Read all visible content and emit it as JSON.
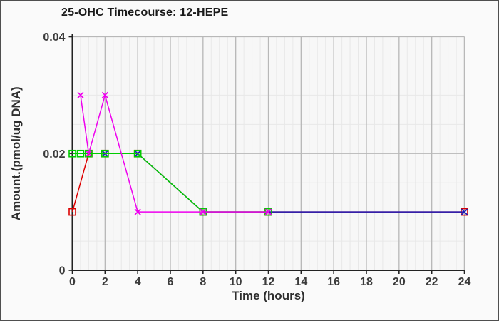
{
  "window": {
    "background": "#fafafa",
    "border_color": "#4f4f4f",
    "plot_background": "#f7f7f7"
  },
  "chart_data": {
    "type": "line",
    "title": "25-OHC Timecourse: 12-HEPE",
    "xlabel": "Time (hours)",
    "ylabel": "Amount.(pmol/ug DNA)",
    "xlim": [
      0,
      24
    ],
    "ylim": [
      0,
      0.04
    ],
    "grid": true,
    "legend_position": "none",
    "x_major_ticks": [
      0,
      2,
      4,
      6,
      8,
      10,
      12,
      14,
      16,
      18,
      20,
      22,
      24
    ],
    "x_tick_labels": [
      "0",
      "2",
      "4",
      "6",
      "8",
      "10",
      "12",
      "14",
      "16",
      "18",
      "20",
      "22",
      "24"
    ],
    "y_major_ticks": [
      0,
      0.02,
      0.04
    ],
    "y_tick_labels": [
      "0",
      "0.02",
      "0.04"
    ],
    "x_minor_step": 0.5,
    "y_minor_step": 0.005,
    "grid_minor_color": "#e8e8e8",
    "grid_major_color": "#b8b8b8",
    "axis_color": "#222222",
    "series": [
      {
        "name": "red-squares",
        "color": "#dd0000",
        "marker": "square",
        "points": [
          [
            0,
            0.01
          ],
          [
            1,
            0.02
          ],
          [
            2,
            0.02
          ],
          [
            4,
            0.02
          ],
          [
            8,
            0.01
          ],
          [
            12,
            0.01
          ],
          [
            24,
            0.01
          ]
        ]
      },
      {
        "name": "navy-crosses",
        "color": "#1c1cb8",
        "marker": "x",
        "points": [
          [
            2,
            0.02
          ],
          [
            4,
            0.02
          ],
          [
            8,
            0.01
          ],
          [
            12,
            0.01
          ],
          [
            24,
            0.01
          ]
        ]
      },
      {
        "name": "green-squares",
        "color": "#00cc00",
        "marker": "square",
        "points": [
          [
            0,
            0.02
          ],
          [
            0.5,
            0.02
          ],
          [
            1,
            0.02
          ],
          [
            2,
            0.02
          ],
          [
            4,
            0.02
          ],
          [
            8,
            0.01
          ],
          [
            12,
            0.01
          ]
        ]
      },
      {
        "name": "magenta-crosses",
        "color": "#ee00ee",
        "marker": "x",
        "points": [
          [
            0.5,
            0.03
          ],
          [
            1,
            0.02
          ],
          [
            2,
            0.03
          ],
          [
            4,
            0.01
          ],
          [
            8,
            0.01
          ],
          [
            12,
            0.01
          ]
        ]
      }
    ]
  }
}
